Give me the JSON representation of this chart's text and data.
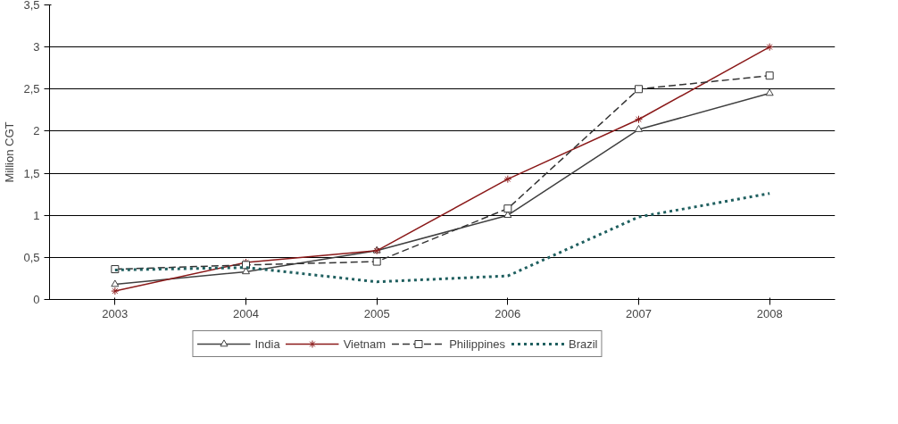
{
  "chart_data": {
    "type": "line",
    "ylabel": "Million CGT",
    "categories": [
      "2003",
      "2004",
      "2005",
      "2006",
      "2007",
      "2008"
    ],
    "series": [
      {
        "name": "India",
        "color": "#404040",
        "marker": "triangle",
        "line_style": "solid",
        "values": [
          0.18,
          0.33,
          0.58,
          1.0,
          2.02,
          2.45
        ]
      },
      {
        "name": "Vietnam",
        "color": "#8b1a1a",
        "marker": "cross",
        "line_style": "solid",
        "values": [
          0.1,
          0.44,
          0.58,
          1.43,
          2.14,
          3.0
        ]
      },
      {
        "name": "Philippines",
        "color": "#333333",
        "marker": "square",
        "line_style": "dashed",
        "values": [
          0.36,
          0.41,
          0.45,
          1.08,
          2.5,
          2.66
        ]
      },
      {
        "name": "Brazil",
        "color": "#1f5f5f",
        "marker": "none",
        "line_style": "dotted",
        "values": [
          0.35,
          0.38,
          0.21,
          0.28,
          0.98,
          1.26
        ]
      }
    ],
    "ylim": [
      0,
      3.5
    ],
    "yticks": [
      0,
      {
        "value": 0.5,
        "label": "0,5"
      },
      1,
      {
        "value": 1.5,
        "label": "1,5"
      },
      2,
      {
        "value": 2.5,
        "label": "2,5"
      },
      3,
      {
        "value": 3.5,
        "label": "3,5"
      }
    ],
    "grid": "y",
    "legend": "bottom"
  }
}
